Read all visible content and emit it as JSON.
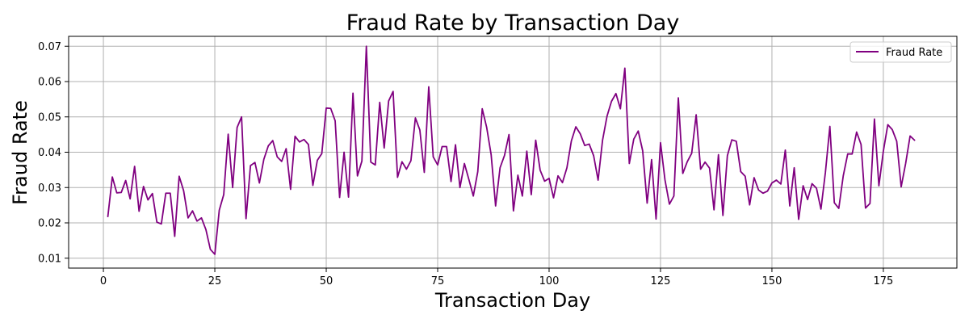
{
  "chart_data": {
    "type": "line",
    "title": "Fraud Rate by Transaction Day",
    "xlabel": "Transaction Day",
    "ylabel": "Fraud Rate",
    "xlim": [
      -7.8,
      191.5
    ],
    "ylim": [
      0.0072,
      0.0728
    ],
    "xticks": [
      0,
      25,
      50,
      75,
      100,
      125,
      150,
      175
    ],
    "yticks": [
      0.01,
      0.02,
      0.03,
      0.04,
      0.05,
      0.06,
      0.07
    ],
    "xtick_labels": [
      "0",
      "25",
      "50",
      "75",
      "100",
      "125",
      "150",
      "175"
    ],
    "ytick_labels": [
      "0.01",
      "0.02",
      "0.03",
      "0.04",
      "0.05",
      "0.06",
      "0.07"
    ],
    "grid": true,
    "legend": {
      "position": "top-right",
      "entries": [
        "Fraud Rate"
      ]
    },
    "colors": {
      "line": "#800080",
      "grid": "#b0b0b0",
      "axis": "#000000",
      "background": "#ffffff"
    },
    "series": [
      {
        "name": "Fraud Rate",
        "x": [
          1,
          2,
          3,
          4,
          5,
          6,
          7,
          8,
          9,
          10,
          11,
          12,
          13,
          14,
          15,
          16,
          17,
          18,
          19,
          20,
          21,
          22,
          23,
          24,
          25,
          26,
          27,
          28,
          29,
          30,
          31,
          32,
          33,
          34,
          35,
          36,
          37,
          38,
          39,
          40,
          41,
          42,
          43,
          44,
          45,
          46,
          47,
          48,
          49,
          50,
          51,
          52,
          53,
          54,
          55,
          56,
          57,
          58,
          59,
          60,
          61,
          62,
          63,
          64,
          65,
          66,
          67,
          68,
          69,
          70,
          71,
          72,
          73,
          74,
          75,
          76,
          77,
          78,
          79,
          80,
          81,
          82,
          83,
          84,
          85,
          86,
          87,
          88,
          89,
          90,
          91,
          92,
          93,
          94,
          95,
          96,
          97,
          98,
          99,
          100,
          101,
          102,
          103,
          104,
          105,
          106,
          107,
          108,
          109,
          110,
          111,
          112,
          113,
          114,
          115,
          116,
          117,
          118,
          119,
          120,
          121,
          122,
          123,
          124,
          125,
          126,
          127,
          128,
          129,
          130,
          131,
          132,
          133,
          134,
          135,
          136,
          137,
          138,
          139,
          140,
          141,
          142,
          143,
          144,
          145,
          146,
          147,
          148,
          149,
          150,
          151,
          152,
          153,
          154,
          155,
          156,
          157,
          158,
          159,
          160,
          161,
          162,
          163,
          164,
          165,
          166,
          167,
          168,
          169,
          170,
          171,
          172,
          173,
          174,
          175,
          176,
          177,
          178,
          179,
          180,
          181,
          182
        ],
        "values": [
          0.0218,
          0.033,
          0.0285,
          0.0286,
          0.032,
          0.0268,
          0.036,
          0.0233,
          0.0303,
          0.0265,
          0.0283,
          0.0202,
          0.0197,
          0.0284,
          0.0284,
          0.0162,
          0.0332,
          0.0291,
          0.0214,
          0.0234,
          0.0205,
          0.0214,
          0.0181,
          0.0125,
          0.0111,
          0.0236,
          0.028,
          0.0451,
          0.03,
          0.047,
          0.05,
          0.0212,
          0.0362,
          0.0371,
          0.0313,
          0.038,
          0.0418,
          0.0433,
          0.0387,
          0.0374,
          0.041,
          0.0295,
          0.0445,
          0.0429,
          0.0436,
          0.0422,
          0.0306,
          0.0377,
          0.0396,
          0.0525,
          0.0524,
          0.0489,
          0.0272,
          0.04,
          0.0273,
          0.0567,
          0.0333,
          0.0375,
          0.07,
          0.0372,
          0.0364,
          0.0541,
          0.0412,
          0.0545,
          0.0572,
          0.0329,
          0.0373,
          0.0352,
          0.0376,
          0.0497,
          0.0463,
          0.0343,
          0.0585,
          0.0387,
          0.0364,
          0.0416,
          0.0416,
          0.0317,
          0.0421,
          0.03,
          0.0368,
          0.0323,
          0.0276,
          0.0345,
          0.0523,
          0.047,
          0.0393,
          0.0248,
          0.0356,
          0.0391,
          0.045,
          0.0234,
          0.0335,
          0.0276,
          0.0403,
          0.028,
          0.0434,
          0.0349,
          0.0318,
          0.0326,
          0.0271,
          0.0333,
          0.0314,
          0.0356,
          0.0432,
          0.0472,
          0.0452,
          0.0419,
          0.0423,
          0.039,
          0.0321,
          0.0434,
          0.0502,
          0.0544,
          0.0566,
          0.0523,
          0.0638,
          0.0368,
          0.0437,
          0.046,
          0.0404,
          0.0256,
          0.0379,
          0.0211,
          0.0427,
          0.0322,
          0.0253,
          0.0276,
          0.0554,
          0.034,
          0.0373,
          0.0397,
          0.0506,
          0.0352,
          0.0372,
          0.0355,
          0.0237,
          0.0393,
          0.0221,
          0.039,
          0.0435,
          0.0431,
          0.0345,
          0.0332,
          0.0251,
          0.0328,
          0.0293,
          0.0284,
          0.029,
          0.0313,
          0.0321,
          0.031,
          0.0406,
          0.0248,
          0.0356,
          0.021,
          0.0305,
          0.0266,
          0.0311,
          0.0298,
          0.0239,
          0.0343,
          0.0473,
          0.0257,
          0.0241,
          0.0333,
          0.0395,
          0.0395,
          0.0457,
          0.0422,
          0.0242,
          0.0255,
          0.0494,
          0.0305,
          0.0403,
          0.0478,
          0.0464,
          0.0431,
          0.0302,
          0.0368,
          0.0446,
          0.0434
        ]
      }
    ]
  }
}
